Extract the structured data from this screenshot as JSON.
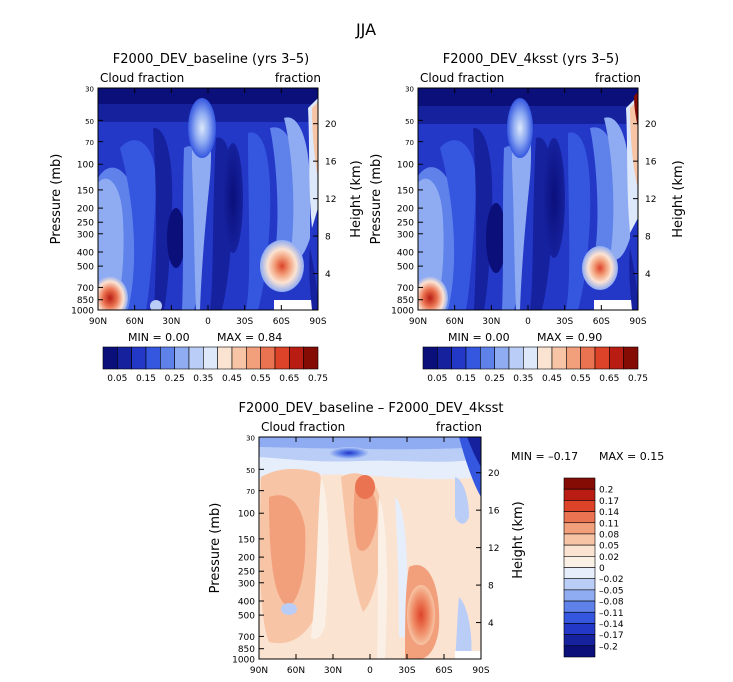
{
  "figure_title": "JJA",
  "chart_data": [
    {
      "type": "contour",
      "title": "F2000_DEV_baseline (yrs 3–5)",
      "left_label": "Cloud fraction",
      "right_label": "fraction",
      "ylabel": "Pressure (mb)",
      "ylabel_right": "Height (km)",
      "x_ticks": [
        "90N",
        "60N",
        "30N",
        "0",
        "30S",
        "60S",
        "90S"
      ],
      "y_ticks": [
        "30",
        "50",
        "70",
        "100",
        "150",
        "200",
        "250",
        "300",
        "400",
        "500",
        "700",
        "850",
        "1000"
      ],
      "y_ticks_right": [
        "20",
        "16",
        "12",
        "8",
        "4"
      ],
      "min_text": "MIN =     0.00",
      "max_text": "MAX =    0.84",
      "colorbar_labels": [
        "0.05",
        "0.15",
        "0.25",
        "0.35",
        "0.45",
        "0.55",
        "0.65",
        "0.75"
      ],
      "colorbar_colors": [
        "#0a0f7a",
        "#16219e",
        "#2438c8",
        "#3557e0",
        "#5f82ea",
        "#8fabf2",
        "#b9cdf6",
        "#dde8fa",
        "#fbe3d2",
        "#f7c4a5",
        "#f2a07c",
        "#ea7351",
        "#dd4329",
        "#b81c12",
        "#850b05"
      ],
      "levels": [
        0.05,
        0.1,
        0.15,
        0.2,
        0.25,
        0.3,
        0.35,
        0.4,
        0.45,
        0.5,
        0.55,
        0.6,
        0.65,
        0.7,
        0.75
      ]
    },
    {
      "type": "contour",
      "title": "F2000_DEV_4ksst (yrs 3–5)",
      "left_label": "Cloud fraction",
      "right_label": "fraction",
      "ylabel": "Pressure (mb)",
      "ylabel_right": "Height (km)",
      "x_ticks": [
        "90N",
        "60N",
        "30N",
        "0",
        "30S",
        "60S",
        "90S"
      ],
      "y_ticks": [
        "30",
        "50",
        "70",
        "100",
        "150",
        "200",
        "250",
        "300",
        "400",
        "500",
        "700",
        "850",
        "1000"
      ],
      "y_ticks_right": [
        "20",
        "16",
        "12",
        "8",
        "4"
      ],
      "min_text": "MIN =     0.00",
      "max_text": "MAX =    0.90",
      "colorbar_labels": [
        "0.05",
        "0.15",
        "0.25",
        "0.35",
        "0.45",
        "0.55",
        "0.65",
        "0.75"
      ],
      "colorbar_colors": [
        "#0a0f7a",
        "#16219e",
        "#2438c8",
        "#3557e0",
        "#5f82ea",
        "#8fabf2",
        "#b9cdf6",
        "#dde8fa",
        "#fbe3d2",
        "#f7c4a5",
        "#f2a07c",
        "#ea7351",
        "#dd4329",
        "#b81c12",
        "#850b05"
      ],
      "levels": [
        0.05,
        0.1,
        0.15,
        0.2,
        0.25,
        0.3,
        0.35,
        0.4,
        0.45,
        0.5,
        0.55,
        0.6,
        0.65,
        0.7,
        0.75
      ]
    },
    {
      "type": "contour",
      "title": "F2000_DEV_baseline – F2000_DEV_4ksst",
      "left_label": "Cloud fraction",
      "right_label": "fraction",
      "ylabel": "Pressure (mb)",
      "ylabel_right": "Height (km)",
      "x_ticks": [
        "90N",
        "60N",
        "30N",
        "0",
        "30S",
        "60S",
        "90S"
      ],
      "y_ticks": [
        "30",
        "50",
        "70",
        "100",
        "150",
        "200",
        "250",
        "300",
        "400",
        "500",
        "700",
        "850",
        "1000"
      ],
      "y_ticks_right": [
        "20",
        "16",
        "12",
        "8",
        "4"
      ],
      "min_text": "MIN =   –0.17",
      "max_text": "MAX =     0.15",
      "colorbar_labels": [
        "0.2",
        "0.17",
        "0.14",
        "0.11",
        "0.08",
        "0.05",
        "0.02",
        "0",
        "–0.02",
        "–0.05",
        "–0.08",
        "–0.11",
        "–0.14",
        "–0.17",
        "–0.2"
      ],
      "colorbar_colors": [
        "#850b05",
        "#b81c12",
        "#dd4329",
        "#ea7351",
        "#f2a07c",
        "#f7c4a5",
        "#fbe3d2",
        "#fbf0e6",
        "#e6eefb",
        "#b9cdf6",
        "#8fabf2",
        "#5f82ea",
        "#3557e0",
        "#2438c8",
        "#16219e",
        "#0a0f7a"
      ]
    }
  ]
}
